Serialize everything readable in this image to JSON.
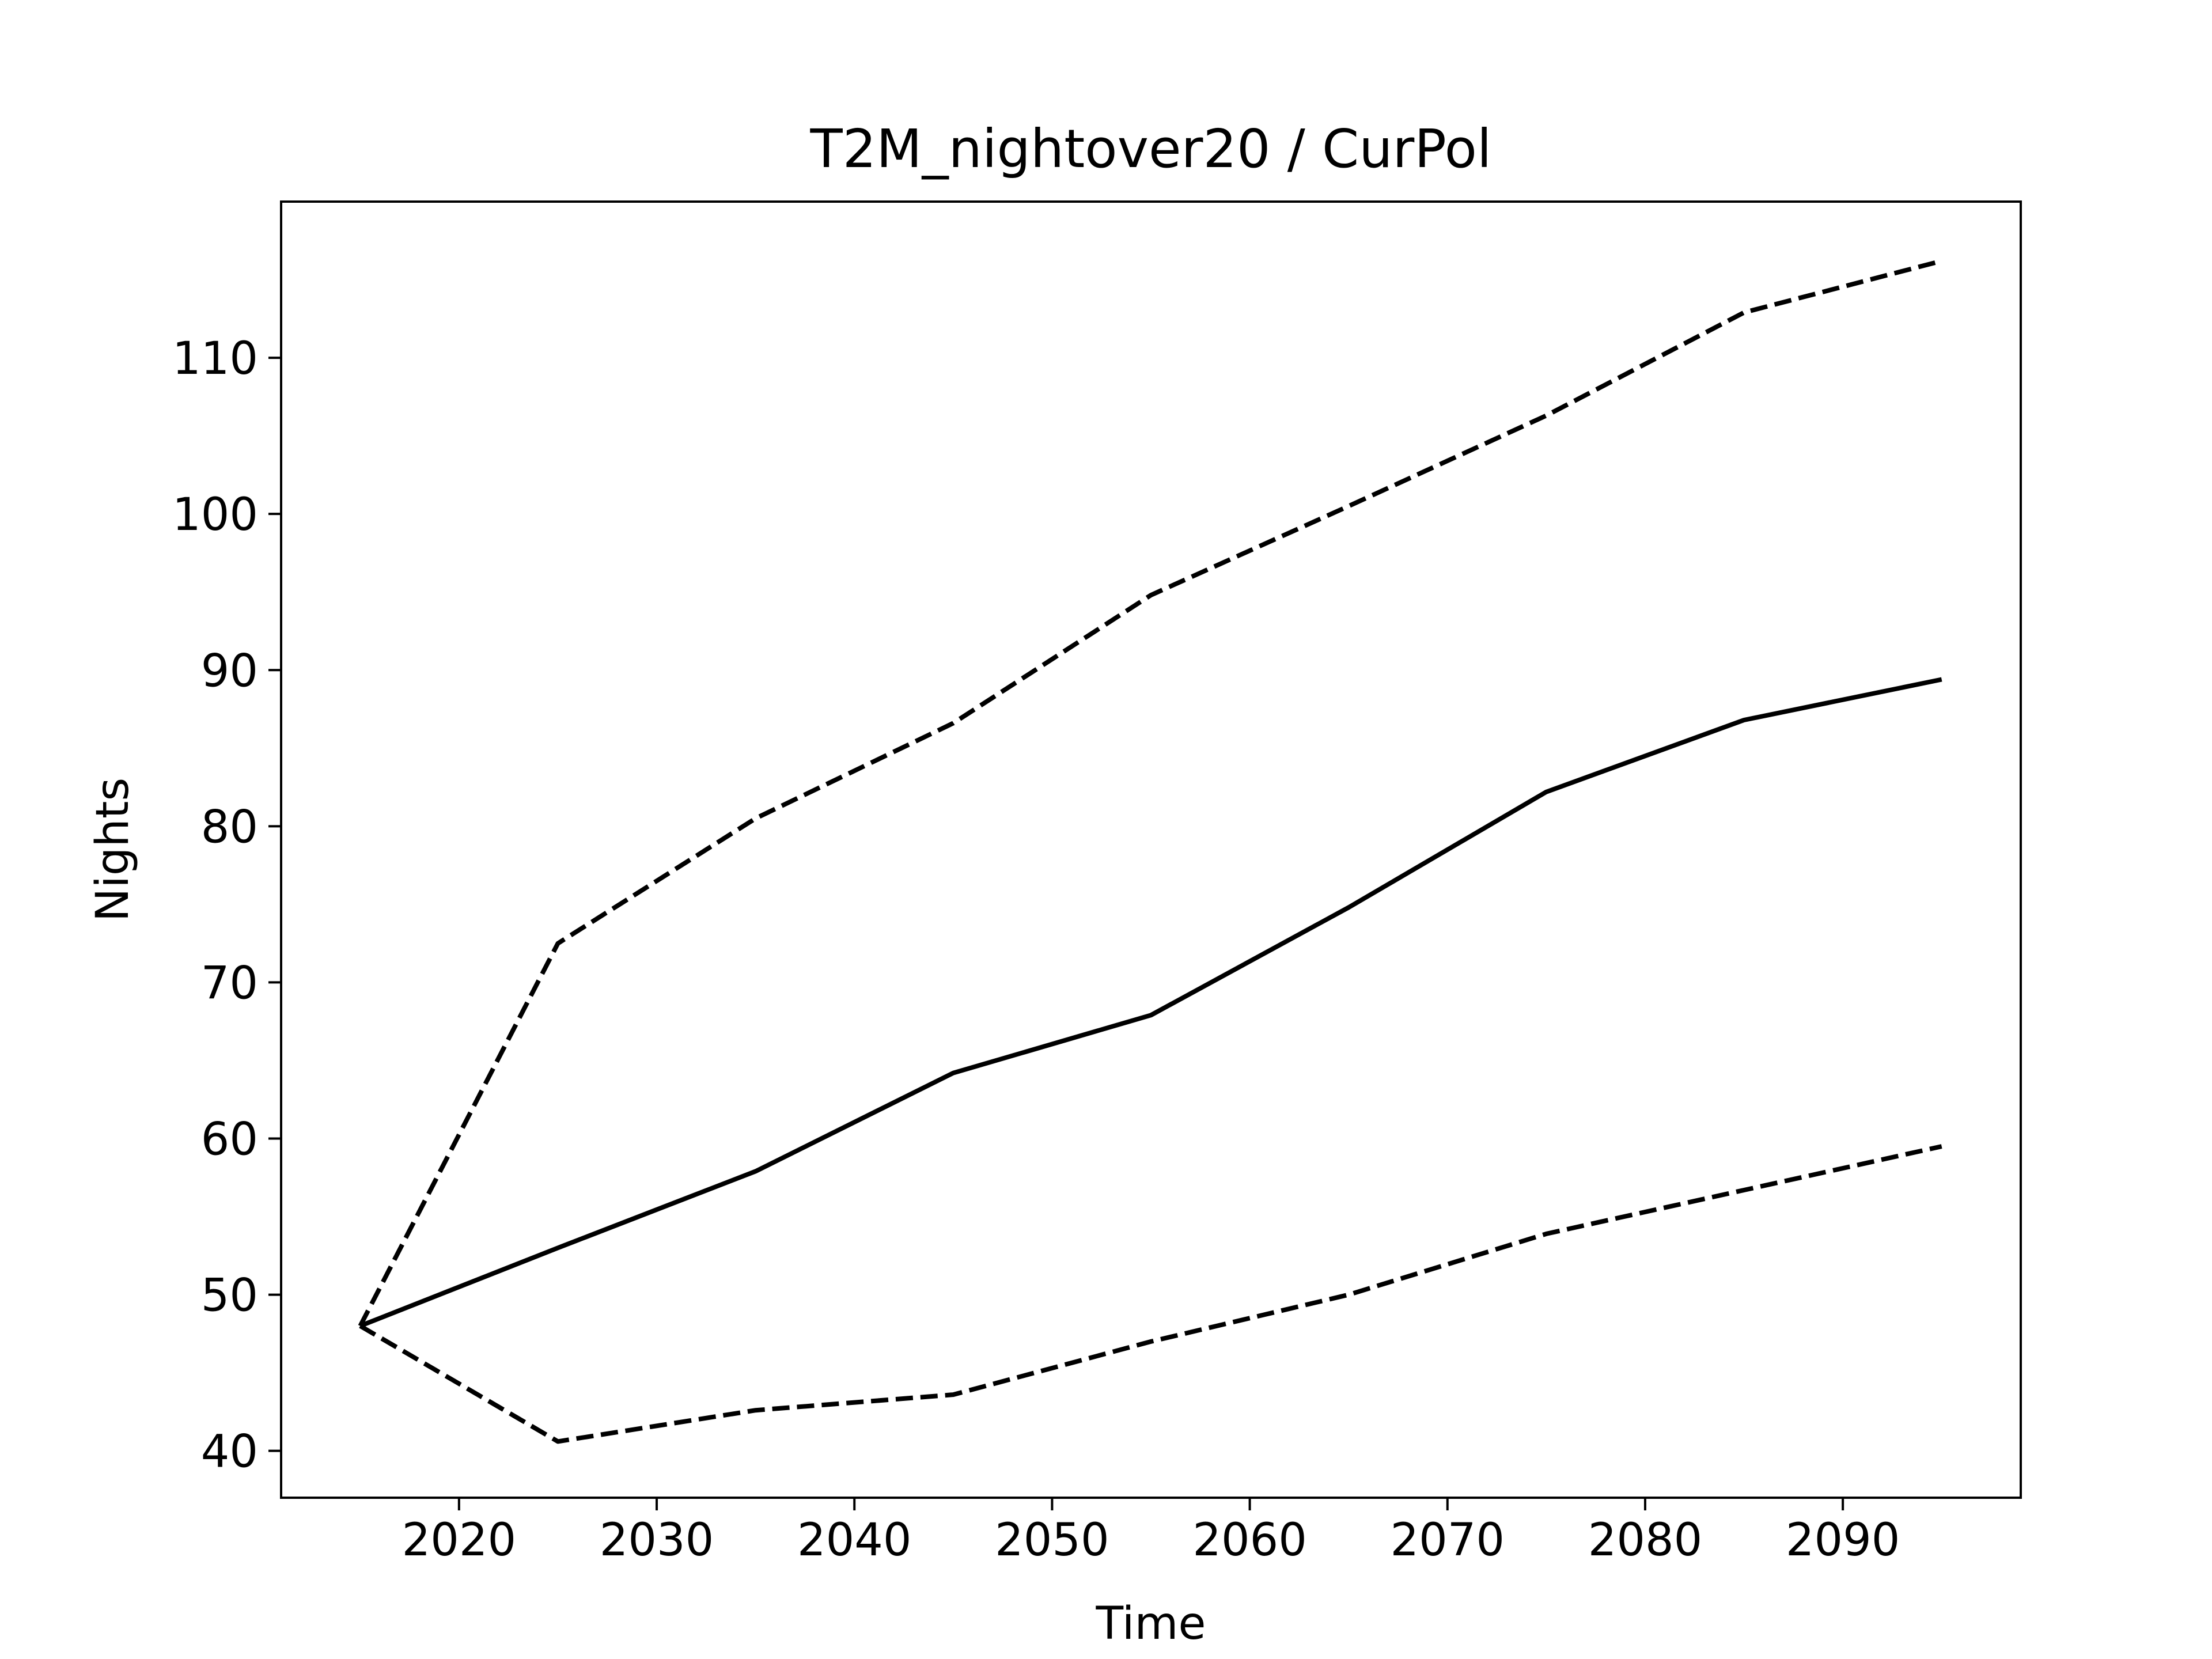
{
  "chart_data": {
    "type": "line",
    "title": "T2M_nightover20 / CurPol",
    "xlabel": "Time",
    "ylabel": "Nights",
    "xlim": [
      2011,
      2099
    ],
    "ylim": [
      37,
      120
    ],
    "x_ticks": [
      2020,
      2030,
      2040,
      2050,
      2060,
      2070,
      2080,
      2090
    ],
    "y_ticks": [
      40,
      50,
      60,
      70,
      80,
      90,
      100,
      110
    ],
    "grid": false,
    "legend": "none",
    "x": [
      2015,
      2025,
      2035,
      2045,
      2055,
      2065,
      2075,
      2085,
      2095
    ],
    "series": [
      {
        "style": "solid",
        "color": "#000000",
        "values": [
          48.0,
          53.0,
          57.9,
          64.2,
          67.9,
          74.8,
          82.2,
          86.8,
          89.4
        ]
      },
      {
        "style": "dashed",
        "color": "#000000",
        "values": [
          48.0,
          72.5,
          80.5,
          86.6,
          94.8,
          100.5,
          106.3,
          112.9,
          116.2
        ]
      },
      {
        "style": "dashed",
        "color": "#000000",
        "values": [
          48.0,
          40.6,
          42.6,
          43.6,
          47.0,
          50.0,
          53.9,
          56.7,
          59.5
        ]
      }
    ]
  }
}
